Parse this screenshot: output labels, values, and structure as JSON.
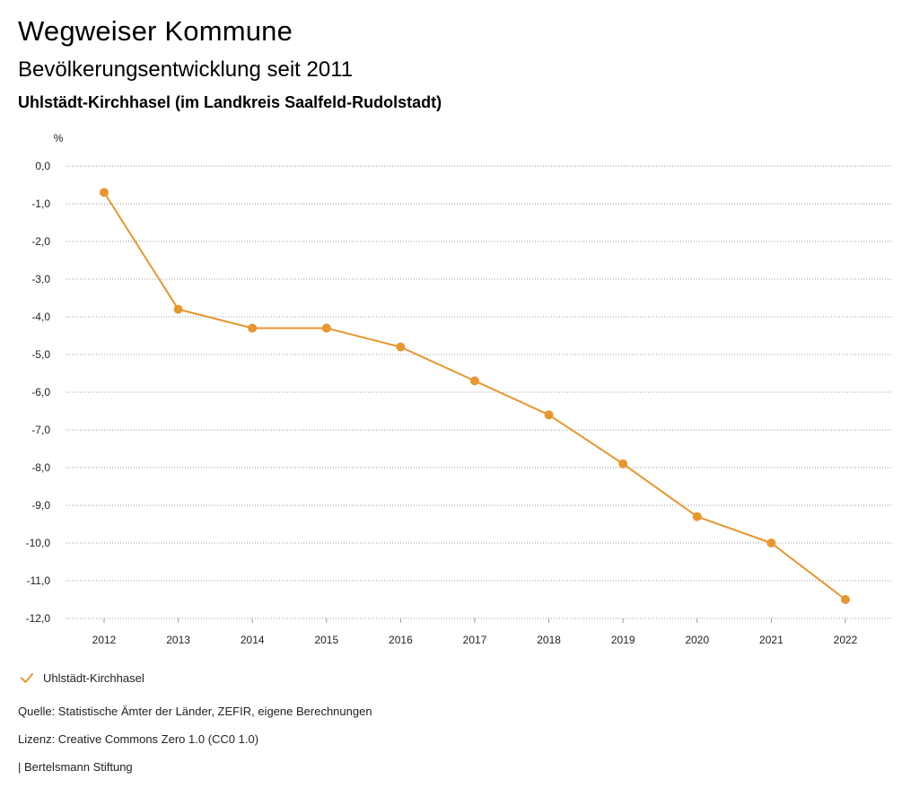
{
  "header": {
    "title": "Wegweiser Kommune",
    "subtitle": "Bevölkerungsentwicklung seit 2011",
    "region": "Uhlstädt-Kirchhasel (im Landkreis Saalfeld-Rudolstadt)"
  },
  "chart_data": {
    "type": "line",
    "ylabel": "%",
    "xlabel": "",
    "categories": [
      "2012",
      "2013",
      "2014",
      "2015",
      "2016",
      "2017",
      "2018",
      "2019",
      "2020",
      "2021",
      "2022"
    ],
    "series": [
      {
        "name": "Uhlstädt-Kirchhasel",
        "values": [
          -0.7,
          -3.8,
          -4.3,
          -4.3,
          -4.8,
          -5.7,
          -6.6,
          -7.9,
          -9.3,
          -10.0,
          -11.5
        ],
        "color": "#e8962e"
      }
    ],
    "ylim": [
      -12,
      0
    ],
    "yticks": [
      0,
      -1,
      -2,
      -3,
      -4,
      -5,
      -6,
      -7,
      -8,
      -9,
      -10,
      -11,
      -12
    ],
    "ytick_labels": [
      "0,0",
      "-1,0",
      "-2,0",
      "-3,0",
      "-4,0",
      "-5,0",
      "-6,0",
      "-7,0",
      "-8,0",
      "-9,0",
      "-10,0",
      "-11,0",
      "-12,0"
    ],
    "grid": true,
    "legend": "bottom-left"
  },
  "legend": {
    "label": "Uhlstädt-Kirchhasel",
    "icon": "check-icon"
  },
  "footer": {
    "source": "Quelle: Statistische Ämter der Länder, ZEFIR, eigene Berechnungen",
    "license": "Lizenz: Creative Commons Zero 1.0 (CC0 1.0)",
    "publisher": "| Bertelsmann Stiftung"
  }
}
